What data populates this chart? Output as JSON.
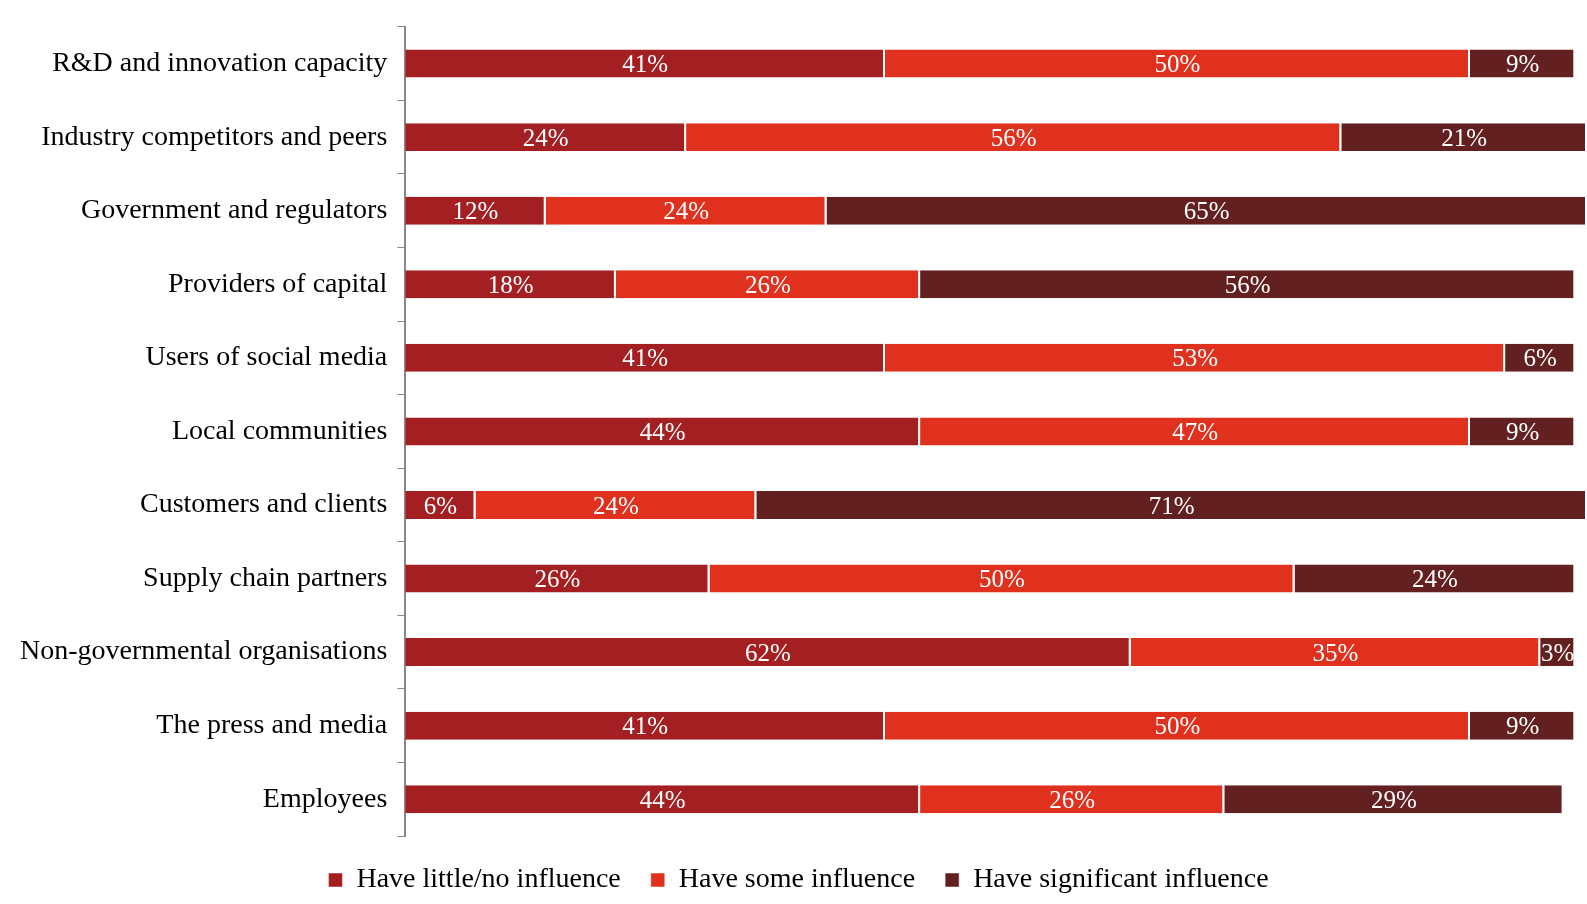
{
  "chart_data": {
    "type": "bar",
    "orientation": "horizontal",
    "stacked": true,
    "legend": "bottom",
    "tick_labels": "y",
    "categories": [
      "R&D and innovation capacity",
      "Industry competitors and peers",
      "Government and regulators",
      "Providers of capital",
      "Users of social media",
      "Local communities",
      "Customers and clients",
      "Supply chain partners",
      "Non-governmental organisations",
      "The press and media",
      "Employees"
    ],
    "series": [
      {
        "name": "Have little/no influence",
        "color": "#a31f22",
        "values": [
          41,
          24,
          12,
          18,
          41,
          44,
          6,
          26,
          62,
          41,
          44
        ],
        "value_labels": [
          "41%",
          "24%",
          "12%",
          "18%",
          "41%",
          "44%",
          "6%",
          "26%",
          "62%",
          "41%",
          "44%"
        ]
      },
      {
        "name": "Have some influence",
        "color": "#e0311f",
        "values": [
          50,
          56,
          24,
          26,
          53,
          47,
          24,
          50,
          35,
          50,
          26
        ],
        "value_labels": [
          "50%",
          "56%",
          "24%",
          "26%",
          "53%",
          "47%",
          "24%",
          "50%",
          "35%",
          "50%",
          "26%"
        ]
      },
      {
        "name": "Have significant influence",
        "color": "#622020",
        "values": [
          9,
          21,
          65,
          56,
          6,
          9,
          71,
          24,
          3,
          9,
          29
        ],
        "value_labels": [
          "9%",
          "21%",
          "65%",
          "56%",
          "6%",
          "9%",
          "71%",
          "24%",
          "3%",
          "9%",
          "29%"
        ]
      }
    ]
  }
}
